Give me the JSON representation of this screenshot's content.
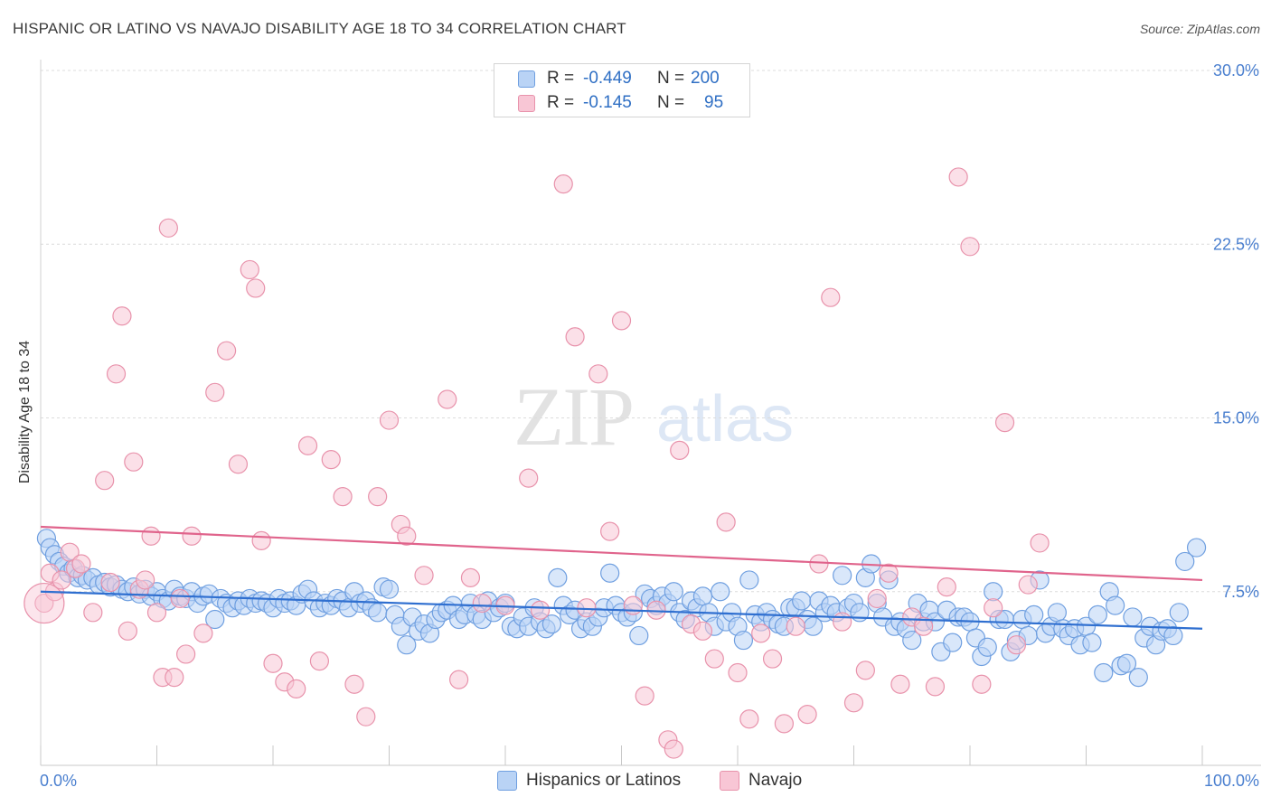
{
  "title": "HISPANIC OR LATINO VS NAVAJO DISABILITY AGE 18 TO 34 CORRELATION CHART",
  "source": "Source: ZipAtlas.com",
  "watermark": {
    "part1": "ZIP",
    "part2": "atlas"
  },
  "stats": [
    {
      "r_label": "R =",
      "r_value": "-0.449",
      "n_label": "N =",
      "n_value": "200"
    },
    {
      "r_label": "R =",
      "r_value": "-0.145",
      "n_label": "N =",
      "n_value": "95"
    }
  ],
  "chart_data": {
    "type": "scatter",
    "title": "HISPANIC OR LATINO VS NAVAJO DISABILITY AGE 18 TO 34 CORRELATION CHART",
    "xlabel": "",
    "ylabel": "Disability Age 18 to 34",
    "xlim": [
      0,
      100
    ],
    "ylim": [
      0,
      30
    ],
    "x_tick_labels": [
      "0.0%",
      "100.0%"
    ],
    "y_ticks": [
      7.5,
      15.0,
      22.5,
      30.0
    ],
    "y_tick_labels": [
      "7.5%",
      "15.0%",
      "22.5%",
      "30.0%"
    ],
    "grid": true,
    "legend_position": "bottom-center",
    "series": [
      {
        "name": "Hispanics or Latinos",
        "color": "#6f9fe0",
        "fill": "#b9d3f5",
        "trend": {
          "x": [
            0,
            100
          ],
          "y": [
            7.5,
            5.9
          ]
        },
        "points": [
          [
            0.5,
            9.8
          ],
          [
            0.8,
            9.4
          ],
          [
            1.2,
            9.1
          ],
          [
            1.6,
            8.8
          ],
          [
            2,
            8.6
          ],
          [
            2.4,
            8.3
          ],
          [
            2.8,
            8.5
          ],
          [
            3.2,
            8.1
          ],
          [
            3.6,
            8.2
          ],
          [
            4,
            8.0
          ],
          [
            4.5,
            8.1
          ],
          [
            5,
            7.8
          ],
          [
            5.5,
            7.9
          ],
          [
            6,
            7.7
          ],
          [
            6.5,
            7.8
          ],
          [
            7,
            7.6
          ],
          [
            7.5,
            7.5
          ],
          [
            8,
            7.7
          ],
          [
            8.5,
            7.4
          ],
          [
            9,
            7.6
          ],
          [
            9.5,
            7.3
          ],
          [
            10,
            7.5
          ],
          [
            10.5,
            7.2
          ],
          [
            11,
            7.1
          ],
          [
            11.5,
            7.6
          ],
          [
            12,
            7.3
          ],
          [
            12.5,
            7.2
          ],
          [
            13,
            7.5
          ],
          [
            13.5,
            7.0
          ],
          [
            14,
            7.3
          ],
          [
            14.5,
            7.4
          ],
          [
            15,
            6.3
          ],
          [
            15.5,
            7.2
          ],
          [
            16,
            7.0
          ],
          [
            16.5,
            6.8
          ],
          [
            17,
            7.1
          ],
          [
            17.5,
            6.9
          ],
          [
            18,
            7.2
          ],
          [
            18.5,
            7.0
          ],
          [
            19,
            7.1
          ],
          [
            19.5,
            7.0
          ],
          [
            20,
            6.8
          ],
          [
            20.5,
            7.2
          ],
          [
            21,
            7.0
          ],
          [
            21.5,
            7.1
          ],
          [
            22,
            6.9
          ],
          [
            22.5,
            7.4
          ],
          [
            23,
            7.6
          ],
          [
            23.5,
            7.1
          ],
          [
            24,
            6.8
          ],
          [
            24.5,
            7.0
          ],
          [
            25,
            6.9
          ],
          [
            25.5,
            7.2
          ],
          [
            26,
            7.1
          ],
          [
            26.5,
            6.8
          ],
          [
            27,
            7.5
          ],
          [
            27.5,
            7.0
          ],
          [
            28,
            7.1
          ],
          [
            28.5,
            6.8
          ],
          [
            29,
            6.6
          ],
          [
            29.5,
            7.7
          ],
          [
            30,
            7.6
          ],
          [
            30.5,
            6.5
          ],
          [
            31,
            6.0
          ],
          [
            31.5,
            5.2
          ],
          [
            32,
            6.4
          ],
          [
            32.5,
            5.8
          ],
          [
            33,
            6.1
          ],
          [
            33.5,
            5.7
          ],
          [
            34,
            6.3
          ],
          [
            34.5,
            6.6
          ],
          [
            35,
            6.7
          ],
          [
            35.5,
            6.9
          ],
          [
            36,
            6.3
          ],
          [
            36.5,
            6.5
          ],
          [
            37,
            7.0
          ],
          [
            37.5,
            6.5
          ],
          [
            38,
            6.3
          ],
          [
            38.5,
            7.1
          ],
          [
            39,
            6.6
          ],
          [
            39.5,
            6.8
          ],
          [
            40,
            7.0
          ],
          [
            40.5,
            6.0
          ],
          [
            41,
            5.9
          ],
          [
            41.5,
            6.4
          ],
          [
            42,
            6.0
          ],
          [
            42.5,
            6.8
          ],
          [
            43,
            6.2
          ],
          [
            43.5,
            5.9
          ],
          [
            44,
            6.1
          ],
          [
            44.5,
            8.1
          ],
          [
            45,
            6.9
          ],
          [
            45.5,
            6.5
          ],
          [
            46,
            6.7
          ],
          [
            46.5,
            5.9
          ],
          [
            47,
            6.2
          ],
          [
            47.5,
            6.0
          ],
          [
            48,
            6.4
          ],
          [
            48.5,
            6.8
          ],
          [
            49,
            8.3
          ],
          [
            49.5,
            6.9
          ],
          [
            50,
            6.6
          ],
          [
            50.5,
            6.4
          ],
          [
            51,
            6.6
          ],
          [
            51.5,
            5.6
          ],
          [
            52,
            7.4
          ],
          [
            52.5,
            7.2
          ],
          [
            53,
            6.9
          ],
          [
            53.5,
            7.3
          ],
          [
            54,
            7.0
          ],
          [
            54.5,
            7.5
          ],
          [
            55,
            6.6
          ],
          [
            55.5,
            6.3
          ],
          [
            56,
            7.1
          ],
          [
            56.5,
            6.8
          ],
          [
            57,
            7.3
          ],
          [
            57.5,
            6.6
          ],
          [
            58,
            6.0
          ],
          [
            58.5,
            7.5
          ],
          [
            59,
            6.2
          ],
          [
            59.5,
            6.6
          ],
          [
            60,
            6.0
          ],
          [
            60.5,
            5.4
          ],
          [
            61,
            8.0
          ],
          [
            61.5,
            6.5
          ],
          [
            62,
            6.2
          ],
          [
            62.5,
            6.6
          ],
          [
            63,
            6.3
          ],
          [
            63.5,
            6.1
          ],
          [
            64,
            6.0
          ],
          [
            64.5,
            6.8
          ],
          [
            65,
            6.8
          ],
          [
            65.5,
            7.1
          ],
          [
            66,
            6.3
          ],
          [
            66.5,
            6.0
          ],
          [
            67,
            7.1
          ],
          [
            67.5,
            6.6
          ],
          [
            68,
            6.9
          ],
          [
            68.5,
            6.6
          ],
          [
            69,
            8.2
          ],
          [
            69.5,
            6.8
          ],
          [
            70,
            7.0
          ],
          [
            70.5,
            6.6
          ],
          [
            71,
            8.1
          ],
          [
            71.5,
            8.7
          ],
          [
            72,
            7.0
          ],
          [
            72.5,
            6.4
          ],
          [
            73,
            8.0
          ],
          [
            73.5,
            6.0
          ],
          [
            74,
            6.2
          ],
          [
            74.5,
            5.9
          ],
          [
            75,
            5.4
          ],
          [
            75.5,
            7.0
          ],
          [
            76,
            6.2
          ],
          [
            76.5,
            6.7
          ],
          [
            77,
            6.2
          ],
          [
            77.5,
            4.9
          ],
          [
            78,
            6.7
          ],
          [
            78.5,
            5.3
          ],
          [
            79,
            6.4
          ],
          [
            79.5,
            6.4
          ],
          [
            80,
            6.2
          ],
          [
            80.5,
            5.5
          ],
          [
            81,
            4.7
          ],
          [
            81.5,
            5.1
          ],
          [
            82,
            7.5
          ],
          [
            82.5,
            6.3
          ],
          [
            83,
            6.3
          ],
          [
            83.5,
            4.9
          ],
          [
            84,
            5.4
          ],
          [
            84.5,
            6.3
          ],
          [
            85,
            5.6
          ],
          [
            85.5,
            6.5
          ],
          [
            86,
            8.0
          ],
          [
            86.5,
            5.7
          ],
          [
            87,
            6.0
          ],
          [
            87.5,
            6.6
          ],
          [
            88,
            5.9
          ],
          [
            88.5,
            5.6
          ],
          [
            89,
            5.9
          ],
          [
            89.5,
            5.2
          ],
          [
            90,
            6.0
          ],
          [
            90.5,
            5.3
          ],
          [
            91,
            6.5
          ],
          [
            91.5,
            4.0
          ],
          [
            92,
            7.5
          ],
          [
            92.5,
            6.9
          ],
          [
            93,
            4.3
          ],
          [
            93.5,
            4.4
          ],
          [
            94,
            6.4
          ],
          [
            94.5,
            3.8
          ],
          [
            95,
            5.5
          ],
          [
            95.5,
            6.0
          ],
          [
            96,
            5.2
          ],
          [
            96.5,
            5.8
          ],
          [
            97,
            5.9
          ],
          [
            97.5,
            5.6
          ],
          [
            98,
            6.6
          ],
          [
            98.5,
            8.8
          ],
          [
            99.5,
            9.4
          ]
        ]
      },
      {
        "name": "Navajo",
        "color": "#e892ab",
        "fill": "#f8c6d5",
        "trend": {
          "x": [
            0,
            100
          ],
          "y": [
            10.3,
            8.0
          ]
        },
        "points": [
          [
            0.3,
            7.0
          ],
          [
            0.8,
            8.3
          ],
          [
            1.2,
            7.5
          ],
          [
            1.8,
            8.0
          ],
          [
            2.5,
            9.2
          ],
          [
            3,
            8.5
          ],
          [
            3.5,
            8.7
          ],
          [
            4.5,
            6.6
          ],
          [
            5.5,
            12.3
          ],
          [
            6,
            7.9
          ],
          [
            6.5,
            16.9
          ],
          [
            7,
            19.4
          ],
          [
            7.5,
            5.8
          ],
          [
            8,
            13.1
          ],
          [
            8.5,
            7.6
          ],
          [
            9,
            8.0
          ],
          [
            9.5,
            9.9
          ],
          [
            10,
            6.6
          ],
          [
            10.5,
            3.8
          ],
          [
            11,
            23.2
          ],
          [
            11.5,
            3.8
          ],
          [
            12,
            7.2
          ],
          [
            12.5,
            4.8
          ],
          [
            13,
            9.9
          ],
          [
            14,
            5.7
          ],
          [
            15,
            16.1
          ],
          [
            16,
            17.9
          ],
          [
            17,
            13.0
          ],
          [
            18,
            21.4
          ],
          [
            18.5,
            20.6
          ],
          [
            19,
            9.7
          ],
          [
            20,
            4.4
          ],
          [
            21,
            3.6
          ],
          [
            22,
            3.3
          ],
          [
            23,
            13.8
          ],
          [
            24,
            4.5
          ],
          [
            25,
            13.2
          ],
          [
            26,
            11.6
          ],
          [
            27,
            3.5
          ],
          [
            28,
            2.1
          ],
          [
            29,
            11.6
          ],
          [
            30,
            14.9
          ],
          [
            31,
            10.4
          ],
          [
            31.5,
            9.9
          ],
          [
            33,
            8.2
          ],
          [
            35,
            15.8
          ],
          [
            36,
            3.7
          ],
          [
            37,
            8.1
          ],
          [
            38,
            7.0
          ],
          [
            40,
            6.9
          ],
          [
            42,
            12.4
          ],
          [
            43,
            6.7
          ],
          [
            45,
            25.1
          ],
          [
            46,
            18.5
          ],
          [
            47,
            6.8
          ],
          [
            48,
            16.9
          ],
          [
            49,
            10.1
          ],
          [
            50,
            19.2
          ],
          [
            51,
            6.9
          ],
          [
            52,
            3.0
          ],
          [
            53,
            6.7
          ],
          [
            54,
            1.1
          ],
          [
            54.5,
            0.7
          ],
          [
            55,
            13.6
          ],
          [
            56,
            6.1
          ],
          [
            57,
            5.8
          ],
          [
            58,
            4.6
          ],
          [
            59,
            10.5
          ],
          [
            60,
            4.0
          ],
          [
            61,
            2.0
          ],
          [
            62,
            5.7
          ],
          [
            63,
            4.6
          ],
          [
            64,
            1.8
          ],
          [
            65,
            6.0
          ],
          [
            66,
            2.2
          ],
          [
            67,
            8.7
          ],
          [
            68,
            20.2
          ],
          [
            69,
            6.2
          ],
          [
            70,
            2.7
          ],
          [
            71,
            4.1
          ],
          [
            72,
            7.2
          ],
          [
            73,
            8.3
          ],
          [
            74,
            3.5
          ],
          [
            75,
            6.4
          ],
          [
            76,
            6.0
          ],
          [
            77,
            3.4
          ],
          [
            78,
            7.7
          ],
          [
            79,
            25.4
          ],
          [
            80,
            22.4
          ],
          [
            81,
            3.5
          ],
          [
            82,
            6.8
          ],
          [
            83,
            14.8
          ],
          [
            84,
            5.2
          ],
          [
            85,
            7.8
          ],
          [
            86,
            9.6
          ]
        ]
      }
    ]
  }
}
